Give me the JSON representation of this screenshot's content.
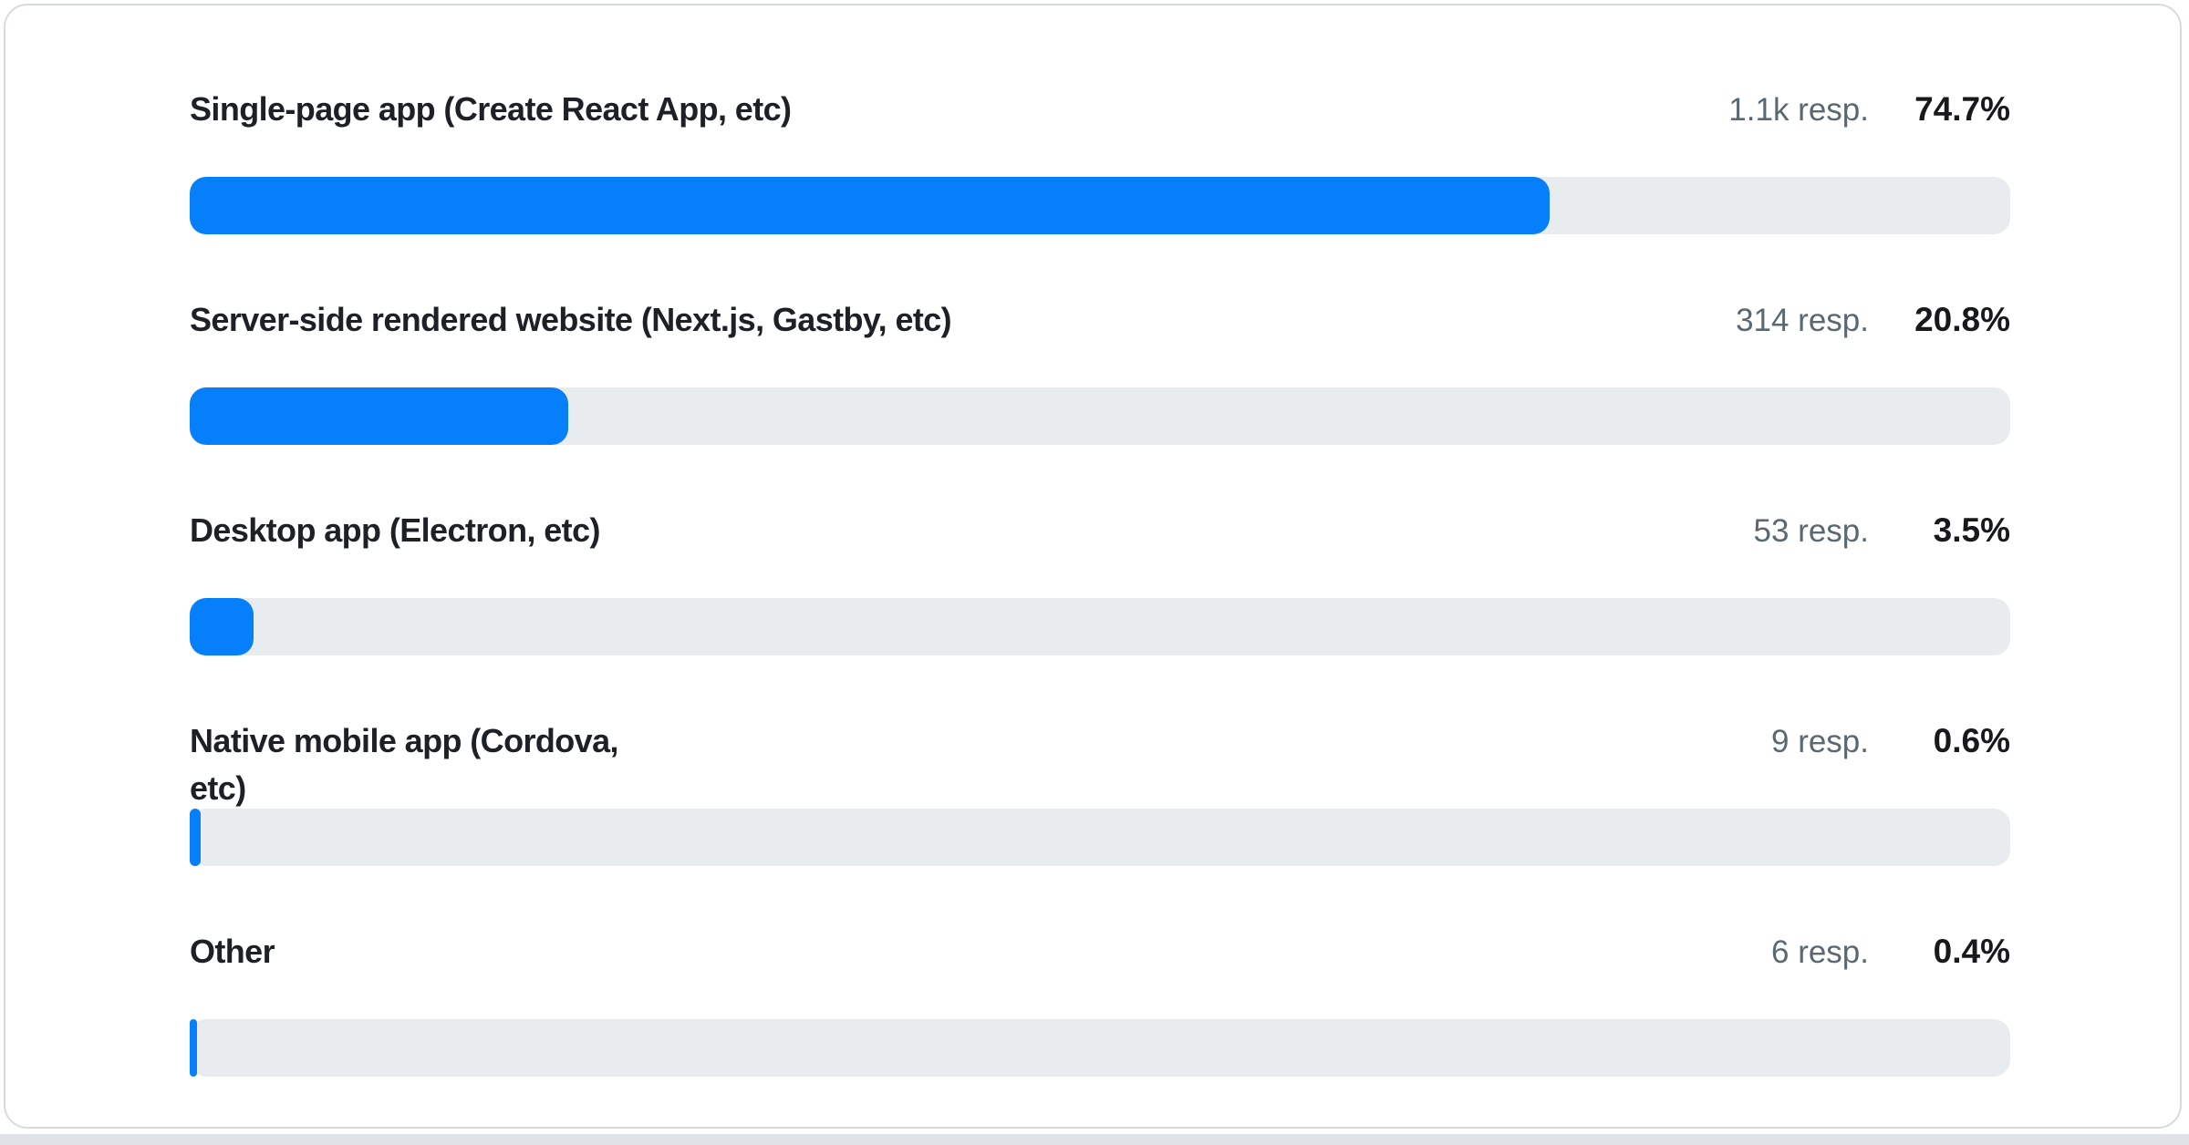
{
  "colors": {
    "bar_fill": "#0680fa",
    "bar_track": "#e9ecef",
    "label_text": "#1d2125",
    "responses_text": "#5a6872",
    "percent_text": "#17191c",
    "card_border": "#d6dbe0",
    "card_background": "#ffffff",
    "bottom_strip": "#dfe3e7"
  },
  "chart_data": {
    "type": "bar",
    "orientation": "horizontal",
    "title": "",
    "xlabel": "",
    "ylabel": "",
    "xlim": [
      0,
      100
    ],
    "value_unit": "%",
    "grid": false,
    "legend": false,
    "rows": [
      {
        "label": "Single-page app (Create React App, etc)",
        "count": "1.1k",
        "count_label": "1.1k resp.",
        "percent_label": "74.7%",
        "value": 74.7
      },
      {
        "label": "Server-side rendered website (Next.js, Gastby, etc)",
        "count": "314",
        "count_label": "314 resp.",
        "percent_label": "20.8%",
        "value": 20.8
      },
      {
        "label": "Desktop app (Electron, etc)",
        "count": "53",
        "count_label": "53 resp.",
        "percent_label": "3.5%",
        "value": 3.5
      },
      {
        "label": "Native mobile app (Cordova,\netc)",
        "count": "9",
        "count_label": "9 resp.",
        "percent_label": "0.6%",
        "value": 0.6
      },
      {
        "label": "Other",
        "count": "6",
        "count_label": "6 resp.",
        "percent_label": "0.4%",
        "value": 0.4
      }
    ]
  }
}
